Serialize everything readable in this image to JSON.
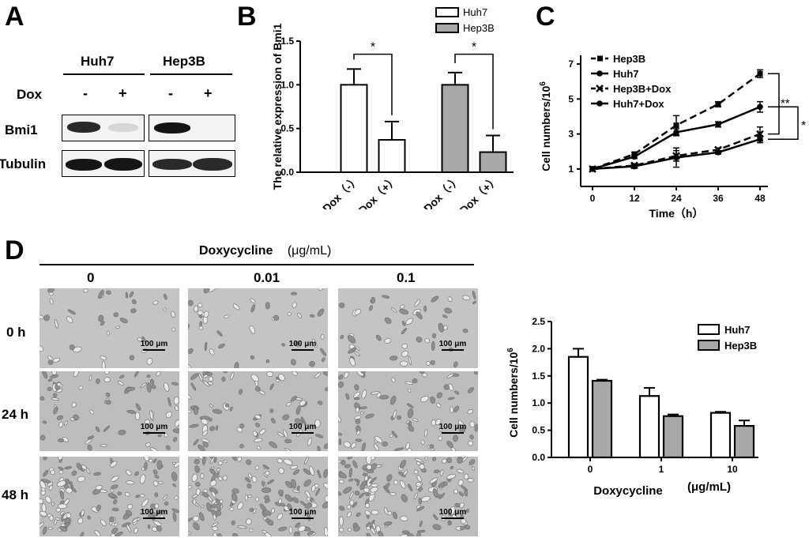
{
  "panels": {
    "a": "A",
    "b": "B",
    "c": "C",
    "d": "D"
  },
  "western": {
    "cell_lines": [
      "Huh7",
      "Hep3B"
    ],
    "row_label_dox": "Dox",
    "dox_states": [
      "-",
      "+",
      "-",
      "+"
    ],
    "proteins": [
      "Bmi1",
      "Tubulin"
    ]
  },
  "chart_b": {
    "type": "bar",
    "ylabel": "The relative expression of Bmi1",
    "yticks": [
      "0.0",
      "0.5",
      "1.0",
      "1.5"
    ],
    "ylim": [
      0,
      1.5
    ],
    "categories": [
      "Dox（-）",
      "Dox（+）",
      "Dox（-）",
      "Dox（+）"
    ],
    "groups": [
      "Huh7",
      "Huh7",
      "Hep3B",
      "Hep3B"
    ],
    "values": [
      1.0,
      0.37,
      1.0,
      0.23
    ],
    "errors": [
      0.18,
      0.21,
      0.14,
      0.19
    ],
    "legend": [
      {
        "name": "Huh7",
        "color": "#ffffff"
      },
      {
        "name": "Hep3B",
        "color": "#a8a8a8"
      }
    ],
    "annotations": [
      "*",
      "*"
    ]
  },
  "chart_c": {
    "type": "line",
    "ylabel": "Cell numbers/10",
    "ylabel_sup": "6",
    "xlabel": "Time（h）",
    "x": [
      0,
      12,
      24,
      36,
      48
    ],
    "xticks": [
      "0",
      "12",
      "24",
      "36",
      "48"
    ],
    "yticks": [
      "1",
      "3",
      "5",
      "7"
    ],
    "ylim": [
      0,
      7.5
    ],
    "series": [
      {
        "name": "Hep3B",
        "values": [
          1.0,
          1.85,
          3.5,
          4.7,
          6.45
        ],
        "errors": [
          0.05,
          0.1,
          0.55,
          0.15,
          0.22
        ],
        "dash": true,
        "marker": "square"
      },
      {
        "name": "Huh7",
        "values": [
          1.0,
          1.7,
          3.1,
          3.55,
          4.55
        ],
        "errors": [
          0.05,
          0.1,
          0.2,
          0.15,
          0.3
        ],
        "dash": false,
        "marker": "circle"
      },
      {
        "name": "Hep3B+Dox",
        "values": [
          1.0,
          1.2,
          1.75,
          2.1,
          3.0
        ],
        "errors": [
          0.05,
          0.1,
          0.3,
          0.1,
          0.4
        ],
        "dash": true,
        "marker": "cross"
      },
      {
        "name": "Huh7+Dox",
        "values": [
          1.0,
          1.15,
          1.65,
          1.95,
          2.7
        ],
        "errors": [
          0.05,
          0.1,
          0.55,
          0.1,
          0.2
        ],
        "dash": false,
        "marker": "circle"
      }
    ],
    "annotations": [
      "**",
      "*"
    ]
  },
  "panel_d": {
    "header": "Doxycycline",
    "header_unit": "(μg/mL)",
    "concentrations": [
      "0",
      "0.01",
      "0.1"
    ],
    "times": [
      "0 h",
      "24 h",
      "48 h"
    ],
    "scale_label": "100 μm"
  },
  "chart_d": {
    "type": "bar",
    "ylabel": "Cell numbers/10",
    "ylabel_sup": "6",
    "xlabel": "Doxycycline",
    "xlabel_unit": "(μg/mL)",
    "categories": [
      "0",
      "1",
      "10"
    ],
    "yticks": [
      "0.0",
      "0.5",
      "1.0",
      "1.5",
      "2.0",
      "2.5"
    ],
    "ylim": [
      0,
      2.5
    ],
    "series": [
      {
        "name": "Huh7",
        "values": [
          1.85,
          1.13,
          0.82
        ],
        "errors": [
          0.15,
          0.15,
          0.02
        ],
        "color": "#ffffff"
      },
      {
        "name": "Hep3B",
        "values": [
          1.41,
          0.76,
          0.58
        ],
        "errors": [
          0.02,
          0.03,
          0.1
        ],
        "color": "#a8a8a8"
      }
    ]
  }
}
